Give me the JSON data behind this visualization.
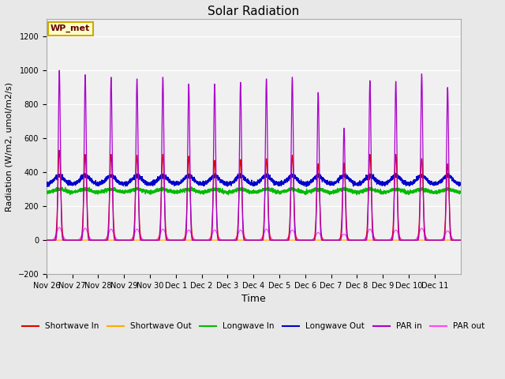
{
  "title": "Solar Radiation",
  "ylabel": "Radiation (W/m2, umol/m2/s)",
  "xlabel": "Time",
  "ylim": [
    -200,
    1300
  ],
  "yticks": [
    -200,
    0,
    200,
    400,
    600,
    800,
    1000,
    1200
  ],
  "fig_bg_color": "#e8e8e8",
  "plot_bg_color": "#f0f0f0",
  "annotation_text": "WP_met",
  "annotation_bg": "#ffffcc",
  "annotation_border": "#ccaa00",
  "legend_entries": [
    {
      "label": "Shortwave In",
      "color": "#dd0000"
    },
    {
      "label": "Shortwave Out",
      "color": "#ffaa00"
    },
    {
      "label": "Longwave In",
      "color": "#00bb00"
    },
    {
      "label": "Longwave Out",
      "color": "#0000cc"
    },
    {
      "label": "PAR in",
      "color": "#aa00cc"
    },
    {
      "label": "PAR out",
      "color": "#ff44ff"
    }
  ],
  "n_days": 16,
  "xtick_labels": [
    "Nov 26",
    "Nov 27",
    "Nov 28",
    "Nov 29",
    "Nov 30",
    "Dec 1",
    "Dec 2",
    "Dec 3",
    "Dec 4",
    "Dec 5",
    "Dec 6",
    "Dec 7",
    "Dec 8",
    "Dec 9",
    "Dec 10",
    "Dec 11"
  ],
  "shortwave_in_peaks": [
    530,
    505,
    505,
    500,
    505,
    495,
    470,
    475,
    480,
    500,
    450,
    455,
    505,
    505,
    480,
    450
  ],
  "par_in_peaks": [
    1000,
    975,
    960,
    950,
    960,
    920,
    920,
    930,
    950,
    960,
    870,
    660,
    940,
    935,
    980,
    900
  ],
  "par_out_peaks": [
    75,
    70,
    65,
    65,
    65,
    60,
    60,
    60,
    65,
    60,
    45,
    35,
    65,
    60,
    70,
    55
  ],
  "longwave_in_base": 280,
  "longwave_out_base": 330,
  "colors": {
    "shortwave_in": "#dd0000",
    "shortwave_out": "#ffaa00",
    "longwave_in": "#00bb00",
    "longwave_out": "#0000cc",
    "par_in": "#aa00cc",
    "par_out": "#ff44ff"
  }
}
